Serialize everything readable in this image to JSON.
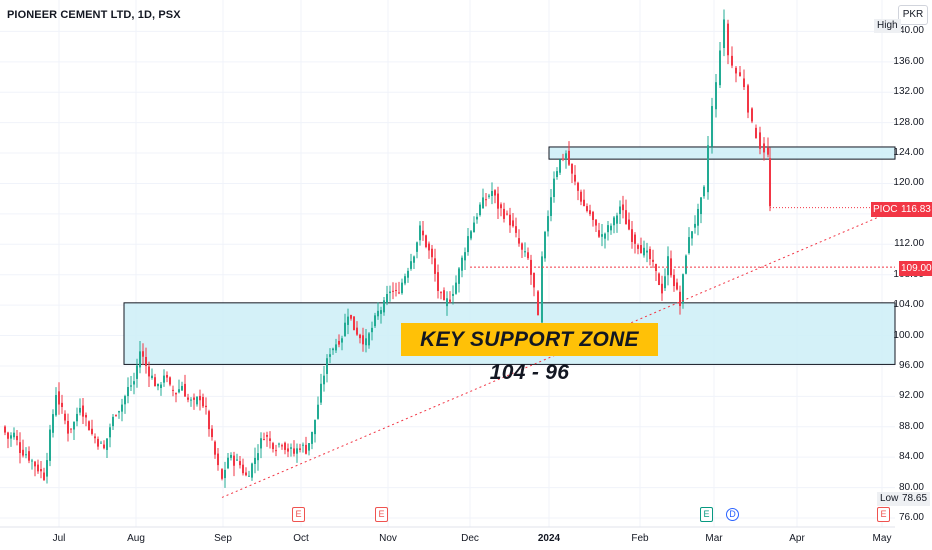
{
  "title": "PIONEER CEMENT LTD, 1D, PSX",
  "currency": "PKR",
  "banner_text": "KEY SUPPORT ZONE 104 - 96",
  "colors": {
    "up": "#22ab94",
    "down": "#f23645",
    "zone_fill": "#cdeef7",
    "banner": "#ffc107",
    "trend": "#f23645",
    "last_price": "#f23645"
  },
  "price_axis": {
    "ticks": [
      "140.00",
      "136.00",
      "132.00",
      "128.00",
      "124.00",
      "120.00",
      "116.00",
      "112.00",
      "108.00",
      "104.00",
      "100.00",
      "96.00",
      "92.00",
      "88.00",
      "84.00",
      "80.00",
      "76.00"
    ]
  },
  "time_axis": {
    "labels": [
      {
        "text": "Jul",
        "bold": false
      },
      {
        "text": "Aug",
        "bold": false
      },
      {
        "text": "Sep",
        "bold": false
      },
      {
        "text": "Oct",
        "bold": false
      },
      {
        "text": "Nov",
        "bold": false
      },
      {
        "text": "Dec",
        "bold": false
      },
      {
        "text": "2024",
        "bold": true
      },
      {
        "text": "Feb",
        "bold": false
      },
      {
        "text": "Mar",
        "bold": false
      },
      {
        "text": "Apr",
        "bold": false
      },
      {
        "text": "May",
        "bold": false
      }
    ]
  },
  "tags": {
    "high_label": "High",
    "low_label": "Low",
    "low_value": "78.65",
    "symbol": "PIOC",
    "last_value": "116.83",
    "level_value": "109.00"
  },
  "events": [
    {
      "type": "E"
    },
    {
      "type": "E"
    },
    {
      "type": "E"
    },
    {
      "type": "D"
    },
    {
      "type": "E"
    }
  ],
  "chart_data": {
    "type": "candlestick",
    "title": "PIONEER CEMENT LTD, 1D, PSX",
    "ylim": [
      76,
      141.5
    ],
    "annotations": [
      {
        "type": "zone",
        "label": "KEY SUPPORT ZONE 104 - 96",
        "low": 96.2,
        "high": 104.3
      },
      {
        "type": "zone",
        "low": 123.2,
        "high": 124.8
      },
      {
        "type": "horizontal_line",
        "value": 109.0
      },
      {
        "type": "trendline",
        "from_value": 78.7,
        "to_value": 116.5
      }
    ],
    "close_path": [
      [
        2,
        88
      ],
      [
        8,
        86.5
      ],
      [
        14,
        87
      ],
      [
        20,
        85
      ],
      [
        26,
        84.5
      ],
      [
        32,
        83.5
      ],
      [
        38,
        82.5
      ],
      [
        44,
        81.5
      ],
      [
        50,
        87
      ],
      [
        56,
        92.5
      ],
      [
        62,
        90
      ],
      [
        68,
        87.5
      ],
      [
        74,
        88.5
      ],
      [
        80,
        91
      ],
      [
        86,
        89
      ],
      [
        92,
        87
      ],
      [
        98,
        86
      ],
      [
        104,
        85
      ],
      [
        110,
        88
      ],
      [
        116,
        90
      ],
      [
        122,
        91
      ],
      [
        128,
        93
      ],
      [
        134,
        94
      ],
      [
        140,
        98
      ],
      [
        146,
        96
      ],
      [
        152,
        94.5
      ],
      [
        158,
        93
      ],
      [
        164,
        95
      ],
      [
        170,
        93
      ],
      [
        176,
        92.5
      ],
      [
        182,
        93.5
      ],
      [
        188,
        91.5
      ],
      [
        194,
        91
      ],
      [
        200,
        92
      ],
      [
        206,
        90
      ],
      [
        212,
        86
      ],
      [
        218,
        82.5
      ],
      [
        222,
        81
      ],
      [
        228,
        84
      ],
      [
        234,
        83.5
      ],
      [
        240,
        83
      ],
      [
        246,
        81.5
      ],
      [
        252,
        83
      ],
      [
        258,
        85
      ],
      [
        264,
        87
      ],
      [
        270,
        86
      ],
      [
        276,
        85.5
      ],
      [
        282,
        86
      ],
      [
        288,
        85
      ],
      [
        294,
        84.5
      ],
      [
        300,
        85.5
      ],
      [
        306,
        85
      ],
      [
        312,
        87
      ],
      [
        318,
        91
      ],
      [
        324,
        95
      ],
      [
        330,
        98
      ],
      [
        336,
        99
      ],
      [
        342,
        100
      ],
      [
        348,
        103
      ],
      [
        354,
        101
      ],
      [
        360,
        100
      ],
      [
        366,
        99
      ],
      [
        372,
        101
      ],
      [
        378,
        103
      ],
      [
        384,
        104
      ],
      [
        390,
        106
      ],
      [
        396,
        105.5
      ],
      [
        402,
        107
      ],
      [
        408,
        109
      ],
      [
        414,
        111
      ],
      [
        420,
        114
      ],
      [
        426,
        112
      ],
      [
        432,
        110
      ],
      [
        438,
        106
      ],
      [
        444,
        104
      ],
      [
        450,
        105
      ],
      [
        456,
        107
      ],
      [
        462,
        110
      ],
      [
        468,
        113
      ],
      [
        474,
        115
      ],
      [
        480,
        117
      ],
      [
        486,
        118
      ],
      [
        492,
        119
      ],
      [
        498,
        117
      ],
      [
        504,
        116
      ],
      [
        510,
        115
      ],
      [
        516,
        113
      ],
      [
        522,
        111
      ],
      [
        528,
        110
      ],
      [
        534,
        106
      ],
      [
        538,
        102
      ],
      [
        542,
        110
      ],
      [
        548,
        116
      ],
      [
        554,
        121
      ],
      [
        560,
        123
      ],
      [
        566,
        124
      ],
      [
        572,
        121
      ],
      [
        578,
        119
      ],
      [
        584,
        117
      ],
      [
        590,
        116
      ],
      [
        596,
        114
      ],
      [
        602,
        113
      ],
      [
        608,
        114
      ],
      [
        614,
        115
      ],
      [
        620,
        117
      ],
      [
        626,
        115
      ],
      [
        632,
        113
      ],
      [
        638,
        112
      ],
      [
        644,
        111
      ],
      [
        650,
        110
      ],
      [
        656,
        108
      ],
      [
        662,
        106
      ],
      [
        668,
        110
      ],
      [
        674,
        107
      ],
      [
        680,
        104
      ],
      [
        686,
        111
      ],
      [
        692,
        114
      ],
      [
        698,
        116
      ],
      [
        704,
        119
      ],
      [
        708,
        125
      ],
      [
        712,
        130
      ],
      [
        716,
        133
      ],
      [
        720,
        138
      ],
      [
        724,
        141
      ],
      [
        728,
        137
      ],
      [
        732,
        135.5
      ],
      [
        736,
        134.5
      ],
      [
        740,
        134
      ],
      [
        744,
        133
      ],
      [
        748,
        130
      ],
      [
        752,
        127.5
      ],
      [
        756,
        126.5
      ],
      [
        760,
        125
      ],
      [
        764,
        124.5
      ],
      [
        768,
        123.5
      ],
      [
        770,
        116.8
      ]
    ]
  }
}
